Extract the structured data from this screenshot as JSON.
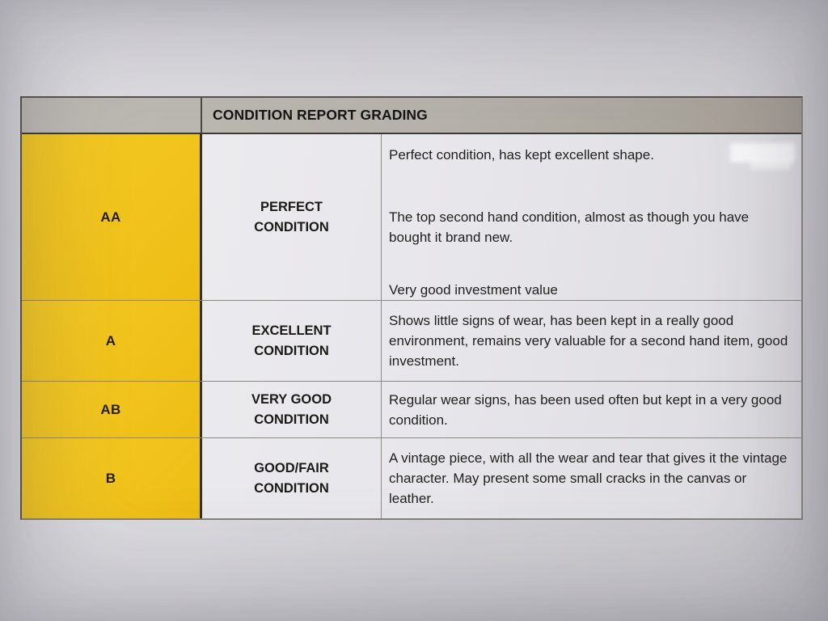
{
  "document": {
    "kind": "photograph of a printed condition grading table"
  },
  "colors": {
    "grade_column_yellow": "#F2C41E",
    "header_gray": "#B7B3AC",
    "paper": "#DAD9DE",
    "text": "#1E1D1B"
  },
  "table": {
    "header": {
      "title": "CONDITION REPORT GRADING"
    },
    "rows": [
      {
        "grade": "AA",
        "condition": "PERFECT CONDITION",
        "description_paragraphs": [
          "Perfect condition, has kept excellent shape.",
          "The top second hand condition, almost as though you have bought it brand new.",
          "Very good investment value"
        ]
      },
      {
        "grade": "A",
        "condition": "EXCELLENT CONDITION",
        "description_paragraphs": [
          "Shows little signs of wear, has been kept in a really good environment, remains very valuable for a second hand item, good investment."
        ]
      },
      {
        "grade": "AB",
        "condition": "VERY GOOD CONDITION",
        "description_paragraphs": [
          "Regular wear signs, has been used often but kept in a very good condition."
        ]
      },
      {
        "grade": "B",
        "condition": "GOOD/FAIR CONDITION",
        "description_paragraphs": [
          "A vintage piece, with all the wear and tear that gives it the vintage character. May present some small cracks in the canvas or leather."
        ]
      }
    ]
  }
}
